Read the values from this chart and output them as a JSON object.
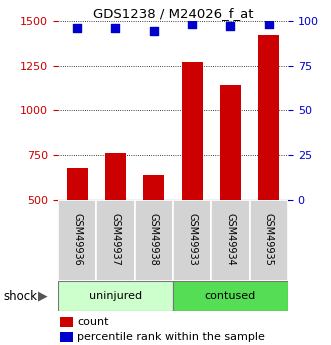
{
  "title": "GDS1238 / M24026_f_at",
  "samples": [
    "GSM49936",
    "GSM49937",
    "GSM49938",
    "GSM49933",
    "GSM49934",
    "GSM49935"
  ],
  "count_values": [
    680,
    760,
    640,
    1270,
    1140,
    1420
  ],
  "percentile_values": [
    96,
    96,
    94,
    98,
    97,
    98
  ],
  "ylim_left": [
    500,
    1500
  ],
  "ylim_right": [
    0,
    100
  ],
  "yticks_left": [
    500,
    750,
    1000,
    1250,
    1500
  ],
  "yticks_right": [
    0,
    25,
    50,
    75,
    100
  ],
  "bar_color": "#cc0000",
  "dot_color": "#0000cc",
  "group1_label": "uninjured",
  "group2_label": "contused",
  "factor_label": "shock",
  "group1_color": "#ccffcc",
  "group2_color": "#55dd55",
  "legend_count_label": "count",
  "legend_pct_label": "percentile rank within the sample",
  "grid_color": "black",
  "left_axis_color": "#cc0000",
  "right_axis_color": "#0000cc",
  "bar_width": 0.55,
  "dot_size": 28
}
